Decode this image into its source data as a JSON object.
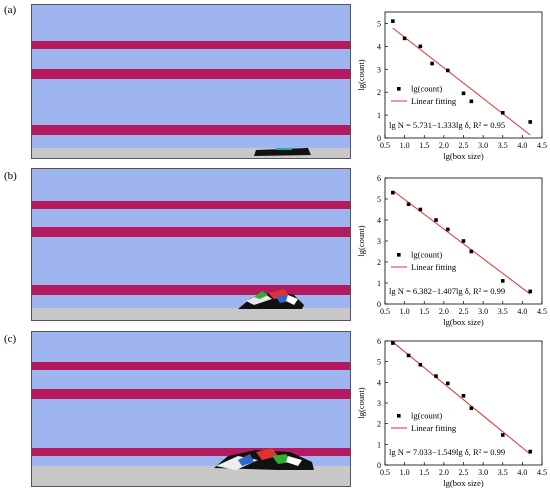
{
  "panels": [
    {
      "label": "(a)",
      "sim_colors": {
        "sky": "#9fb5ef",
        "band": "#b5195e",
        "ground": "#c8c8c8",
        "debris": "#111111"
      },
      "equation": "lg N = 5.731−1.333lg δ, R² = 0.95",
      "chart_data": {
        "type": "scatter",
        "xlabel": "lg(box size)",
        "ylabel": "lg(count)",
        "xlim": [
          0.5,
          4.5
        ],
        "ylim": [
          0,
          5.5
        ],
        "xticks": [
          0.5,
          1.0,
          1.5,
          2.0,
          2.5,
          3.0,
          3.5,
          4.0,
          4.5
        ],
        "yticks": [
          0,
          1,
          2,
          3,
          4,
          5
        ],
        "legend": {
          "placement": "bottom-left",
          "scatter": "lg(count)",
          "line": "Linear fitting"
        },
        "series": [
          {
            "name": "lg(count)",
            "x": [
              0.7,
              1.0,
              1.4,
              1.7,
              2.1,
              2.5,
              2.7,
              3.5,
              4.2
            ],
            "y": [
              5.1,
              4.35,
              4.0,
              3.25,
              2.95,
              1.95,
              1.6,
              1.1,
              0.7
            ]
          },
          {
            "name": "Linear fitting",
            "slope": -1.333,
            "intercept": 5.731,
            "x_range": [
              0.7,
              4.2
            ],
            "color": "#e03030"
          }
        ]
      }
    },
    {
      "label": "(b)",
      "sim_colors": {
        "sky": "#9fb5ef",
        "band": "#b5195e",
        "ground": "#c8c8c8",
        "debris": "#111111"
      },
      "equation": "lg N = 6.382−1.407lg δ, R² = 0.99",
      "chart_data": {
        "type": "scatter",
        "xlabel": "lg(box size)",
        "ylabel": "lg(count)",
        "xlim": [
          0.5,
          4.5
        ],
        "ylim": [
          0,
          6
        ],
        "xticks": [
          0.5,
          1.0,
          1.5,
          2.0,
          2.5,
          3.0,
          3.5,
          4.0,
          4.5
        ],
        "yticks": [
          0,
          1,
          2,
          3,
          4,
          5,
          6
        ],
        "legend": {
          "placement": "bottom-left",
          "scatter": "lg(count)",
          "line": "Linear fitting"
        },
        "series": [
          {
            "name": "lg(count)",
            "x": [
              0.7,
              1.1,
              1.4,
              1.8,
              2.1,
              2.5,
              2.7,
              3.5,
              4.2
            ],
            "y": [
              5.3,
              4.75,
              4.5,
              4.0,
              3.55,
              3.0,
              2.5,
              1.1,
              0.6
            ]
          },
          {
            "name": "Linear fitting",
            "slope": -1.407,
            "intercept": 6.382,
            "x_range": [
              0.7,
              4.2
            ],
            "color": "#e03030"
          }
        ]
      }
    },
    {
      "label": "(c)",
      "sim_colors": {
        "sky": "#9fb5ef",
        "band": "#b5195e",
        "ground": "#c8c8c8",
        "debris": "#111111"
      },
      "equation": "lg N = 7.033−1.549lg δ, R² = 0.99",
      "chart_data": {
        "type": "scatter",
        "xlabel": "lg(box size)",
        "ylabel": "lg(count)",
        "xlim": [
          0.5,
          4.5
        ],
        "ylim": [
          0,
          6
        ],
        "xticks": [
          0.5,
          1.0,
          1.5,
          2.0,
          2.5,
          3.0,
          3.5,
          4.0,
          4.5
        ],
        "yticks": [
          0,
          1,
          2,
          3,
          4,
          5,
          6
        ],
        "legend": {
          "placement": "bottom-left",
          "scatter": "lg(count)",
          "line": "Linear fitting"
        },
        "series": [
          {
            "name": "lg(count)",
            "x": [
              0.7,
              1.1,
              1.4,
              1.8,
              2.1,
              2.5,
              2.7,
              3.5,
              4.2
            ],
            "y": [
              5.9,
              5.3,
              4.85,
              4.3,
              3.95,
              3.35,
              2.75,
              1.45,
              0.65
            ]
          },
          {
            "name": "Linear fitting",
            "slope": -1.549,
            "intercept": 7.033,
            "x_range": [
              0.7,
              4.2
            ],
            "color": "#e03030"
          }
        ]
      }
    }
  ]
}
